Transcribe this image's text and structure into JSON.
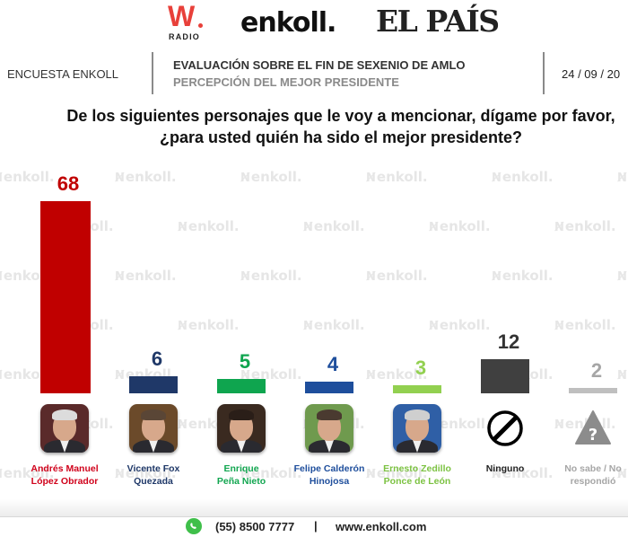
{
  "logos": {
    "w_radio": {
      "letter": "W",
      "sub": "RADIO"
    },
    "enkoll": "enkoll.",
    "el_pais": "EL PAÍS"
  },
  "header": {
    "left_label": "ENCUESTA ENKOLL",
    "title": "EVALUACIÓN SOBRE EL FIN DE SEXENIO DE AMLO",
    "subtitle": "PERCEPCIÓN DEL MEJOR PRESIDENTE",
    "date": "24 / 09 / 20"
  },
  "question": {
    "line1": "De los siguientes personajes que le voy a mencionar, dígame por favor,",
    "line2": "¿para usted quién ha sido el mejor presidente?"
  },
  "watermark": "enkoll.",
  "chart_data": {
    "type": "bar",
    "title": "¿para usted quién ha sido el mejor presidente?",
    "xlabel": "",
    "ylabel": "",
    "ylim": [
      0,
      68
    ],
    "grid": false,
    "legend": "none",
    "categories": [
      "Andrés Manuel López Obrador",
      "Vicente Fox Quezada",
      "Enrique Peña Nieto",
      "Felipe Calderón Hinojosa",
      "Ernesto Zedillo Ponce de León",
      "Ninguno",
      "No sabe / No respondió"
    ],
    "values": [
      68,
      6,
      5,
      4,
      3,
      12,
      2
    ],
    "colors": [
      "#c00000",
      "#1f3868",
      "#0fa54f",
      "#1e4e9c",
      "#92d050",
      "#404040",
      "#bfbfbf"
    ]
  },
  "bars": [
    {
      "value": "68",
      "label1": "Andrés Manuel",
      "label2": "López Obrador",
      "color": "#c00000",
      "label_color": "#d0021b",
      "icon": "amlo-photo"
    },
    {
      "value": "6",
      "label1": "Vicente Fox",
      "label2": "Quezada",
      "color": "#1f3868",
      "label_color": "#1f3868",
      "icon": "fox-photo"
    },
    {
      "value": "5",
      "label1": "Enrique",
      "label2": "Peña Nieto",
      "color": "#0fa54f",
      "label_color": "#12a650",
      "icon": "pena-nieto-photo"
    },
    {
      "value": "4",
      "label1": "Felipe Calderón",
      "label2": "Hinojosa",
      "color": "#1e4e9c",
      "label_color": "#1e4e9c",
      "icon": "calderon-photo"
    },
    {
      "value": "3",
      "label1": "Ernesto Zedillo",
      "label2": "Ponce de León",
      "color": "#92d050",
      "label_color": "#7cc242",
      "icon": "zedillo-photo"
    },
    {
      "value": "12",
      "label1": "Ninguno",
      "label2": "",
      "color": "#404040",
      "label_color": "#222222",
      "icon": "prohibited-icon"
    },
    {
      "value": "2",
      "label1": "No sabe / No",
      "label2": "respondió",
      "color": "#bfbfbf",
      "label_color": "#a6a6a6",
      "icon": "warning-question-icon"
    }
  ],
  "footer": {
    "icon": "whatsapp-icon",
    "phone": "(55) 8500 7777",
    "separator": "|",
    "website": "www.enkoll.com"
  }
}
